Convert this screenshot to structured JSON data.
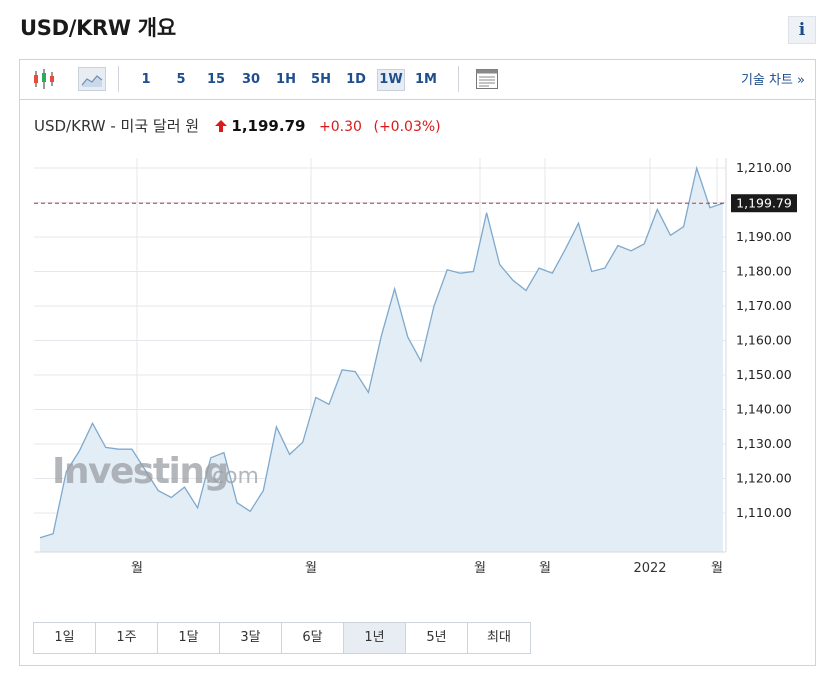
{
  "page": {
    "title": "USD/KRW 개요",
    "info_label": "i"
  },
  "toolbar": {
    "intervals": [
      "1",
      "5",
      "15",
      "30",
      "1H",
      "5H",
      "1D",
      "1W",
      "1M"
    ],
    "active_interval": "1W",
    "technical_link": "기술 차트 »",
    "icons": [
      "candlestick-icon",
      "area-chart-icon",
      "news-panel-icon"
    ]
  },
  "quote": {
    "symbol_label": "USD/KRW - 미국 달러 원",
    "price": "1,199.79",
    "change": "+0.30",
    "change_pct": "(+0.03%)",
    "direction": "up",
    "up_color": "#d81b1b"
  },
  "chart_data": {
    "type": "area",
    "y_ticks": [
      "1,210.00",
      "1,200.00",
      "1,190.00",
      "1,180.00",
      "1,170.00",
      "1,160.00",
      "1,150.00",
      "1,140.00",
      "1,130.00",
      "1,120.00",
      "1,110.00"
    ],
    "y_tick_values": [
      1210,
      1200,
      1190,
      1180,
      1170,
      1160,
      1150,
      1140,
      1130,
      1120,
      1110
    ],
    "ylim": [
      1100,
      1212
    ],
    "x_tick_labels": [
      "월",
      "월",
      "월",
      "월",
      "2022",
      "월"
    ],
    "current_price_label": "1,199.79",
    "current_price": 1199.79,
    "values": [
      1102.8,
      1104.0,
      1122.0,
      1128.0,
      1136.0,
      1129.0,
      1128.5,
      1128.5,
      1122.5,
      1116.5,
      1114.5,
      1117.5,
      1111.5,
      1126.0,
      1127.5,
      1113.0,
      1110.5,
      1116.5,
      1135.0,
      1127.0,
      1130.5,
      1143.5,
      1141.5,
      1151.5,
      1151.0,
      1145.0,
      1161.5,
      1175.0,
      1161.0,
      1154.0,
      1170.0,
      1180.5,
      1179.5,
      1180.0,
      1197.0,
      1182.0,
      1177.5,
      1174.5,
      1181.0,
      1179.5,
      1186.5,
      1194.0,
      1180.0,
      1181.0,
      1187.5,
      1186.0,
      1188.0,
      1198.0,
      1190.5,
      1193.0,
      1210.0,
      1198.5,
      1199.79
    ],
    "colors": {
      "line": "#7fa9cc",
      "fill": "#e3edf6",
      "current_line": "#c0392b",
      "grid": "#e4e7eb",
      "label_bg": "#1a1a1a"
    },
    "grid": true,
    "watermark": "Investing.com"
  },
  "range_buttons": [
    "1일",
    "1주",
    "1달",
    "3달",
    "6달",
    "1년",
    "5년",
    "최대"
  ],
  "active_range": "1년"
}
